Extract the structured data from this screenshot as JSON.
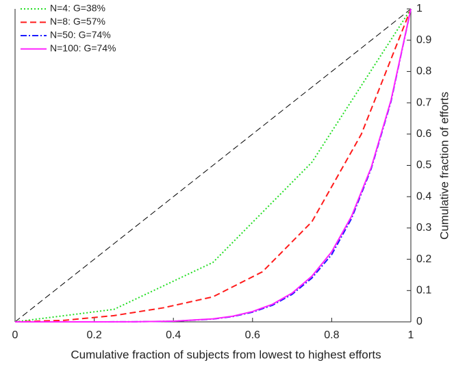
{
  "chart_data": {
    "type": "line",
    "xlabel": "Cumulative fraction of subjects from lowest to highest efforts",
    "ylabel": "Cumulative fraction of efforts",
    "xlim": [
      0,
      1
    ],
    "ylim": [
      0,
      1
    ],
    "xticks": [
      0,
      0.2,
      0.4,
      0.6,
      0.8,
      1
    ],
    "yticks": [
      0,
      0.1,
      0.2,
      0.3,
      0.4,
      0.5,
      0.6,
      0.7,
      0.8,
      0.9,
      1
    ],
    "y_axis_side": "right",
    "legend": "upper left",
    "reference": {
      "x": [
        0,
        1
      ],
      "values": [
        0,
        1
      ],
      "color": "#000000",
      "linestyle": "dashed"
    },
    "series": [
      {
        "name": "N=4: G=38%",
        "color": "#22dd22",
        "linestyle": "dotted",
        "x": [
          0,
          0.25,
          0.5,
          0.75,
          1
        ],
        "values": [
          0,
          0.04,
          0.19,
          0.51,
          1
        ]
      },
      {
        "name": "N=8: G=57%",
        "color": "#ff1a1a",
        "linestyle": "dashed",
        "x": [
          0,
          0.125,
          0.25,
          0.375,
          0.5,
          0.625,
          0.75,
          0.875,
          1
        ],
        "values": [
          0,
          0.005,
          0.02,
          0.045,
          0.08,
          0.16,
          0.32,
          0.6,
          1
        ]
      },
      {
        "name": "N=50: G=74%",
        "color": "#1a1aff",
        "linestyle": "dashdot",
        "x": [
          0,
          0.1,
          0.2,
          0.3,
          0.4,
          0.5,
          0.55,
          0.6,
          0.65,
          0.7,
          0.75,
          0.8,
          0.85,
          0.9,
          0.95,
          1
        ],
        "values": [
          0,
          0,
          0,
          0.0003,
          0.002,
          0.009,
          0.017,
          0.031,
          0.053,
          0.088,
          0.14,
          0.215,
          0.33,
          0.49,
          0.705,
          1
        ]
      },
      {
        "name": "N=100: G=74%",
        "color": "#ff22ff",
        "linestyle": "solid",
        "x": [
          0,
          0.1,
          0.2,
          0.3,
          0.4,
          0.5,
          0.55,
          0.6,
          0.65,
          0.7,
          0.75,
          0.8,
          0.85,
          0.9,
          0.95,
          1
        ],
        "values": [
          0,
          0,
          0,
          0.0003,
          0.0022,
          0.0096,
          0.018,
          0.033,
          0.056,
          0.092,
          0.146,
          0.224,
          0.337,
          0.494,
          0.709,
          1
        ]
      }
    ]
  }
}
